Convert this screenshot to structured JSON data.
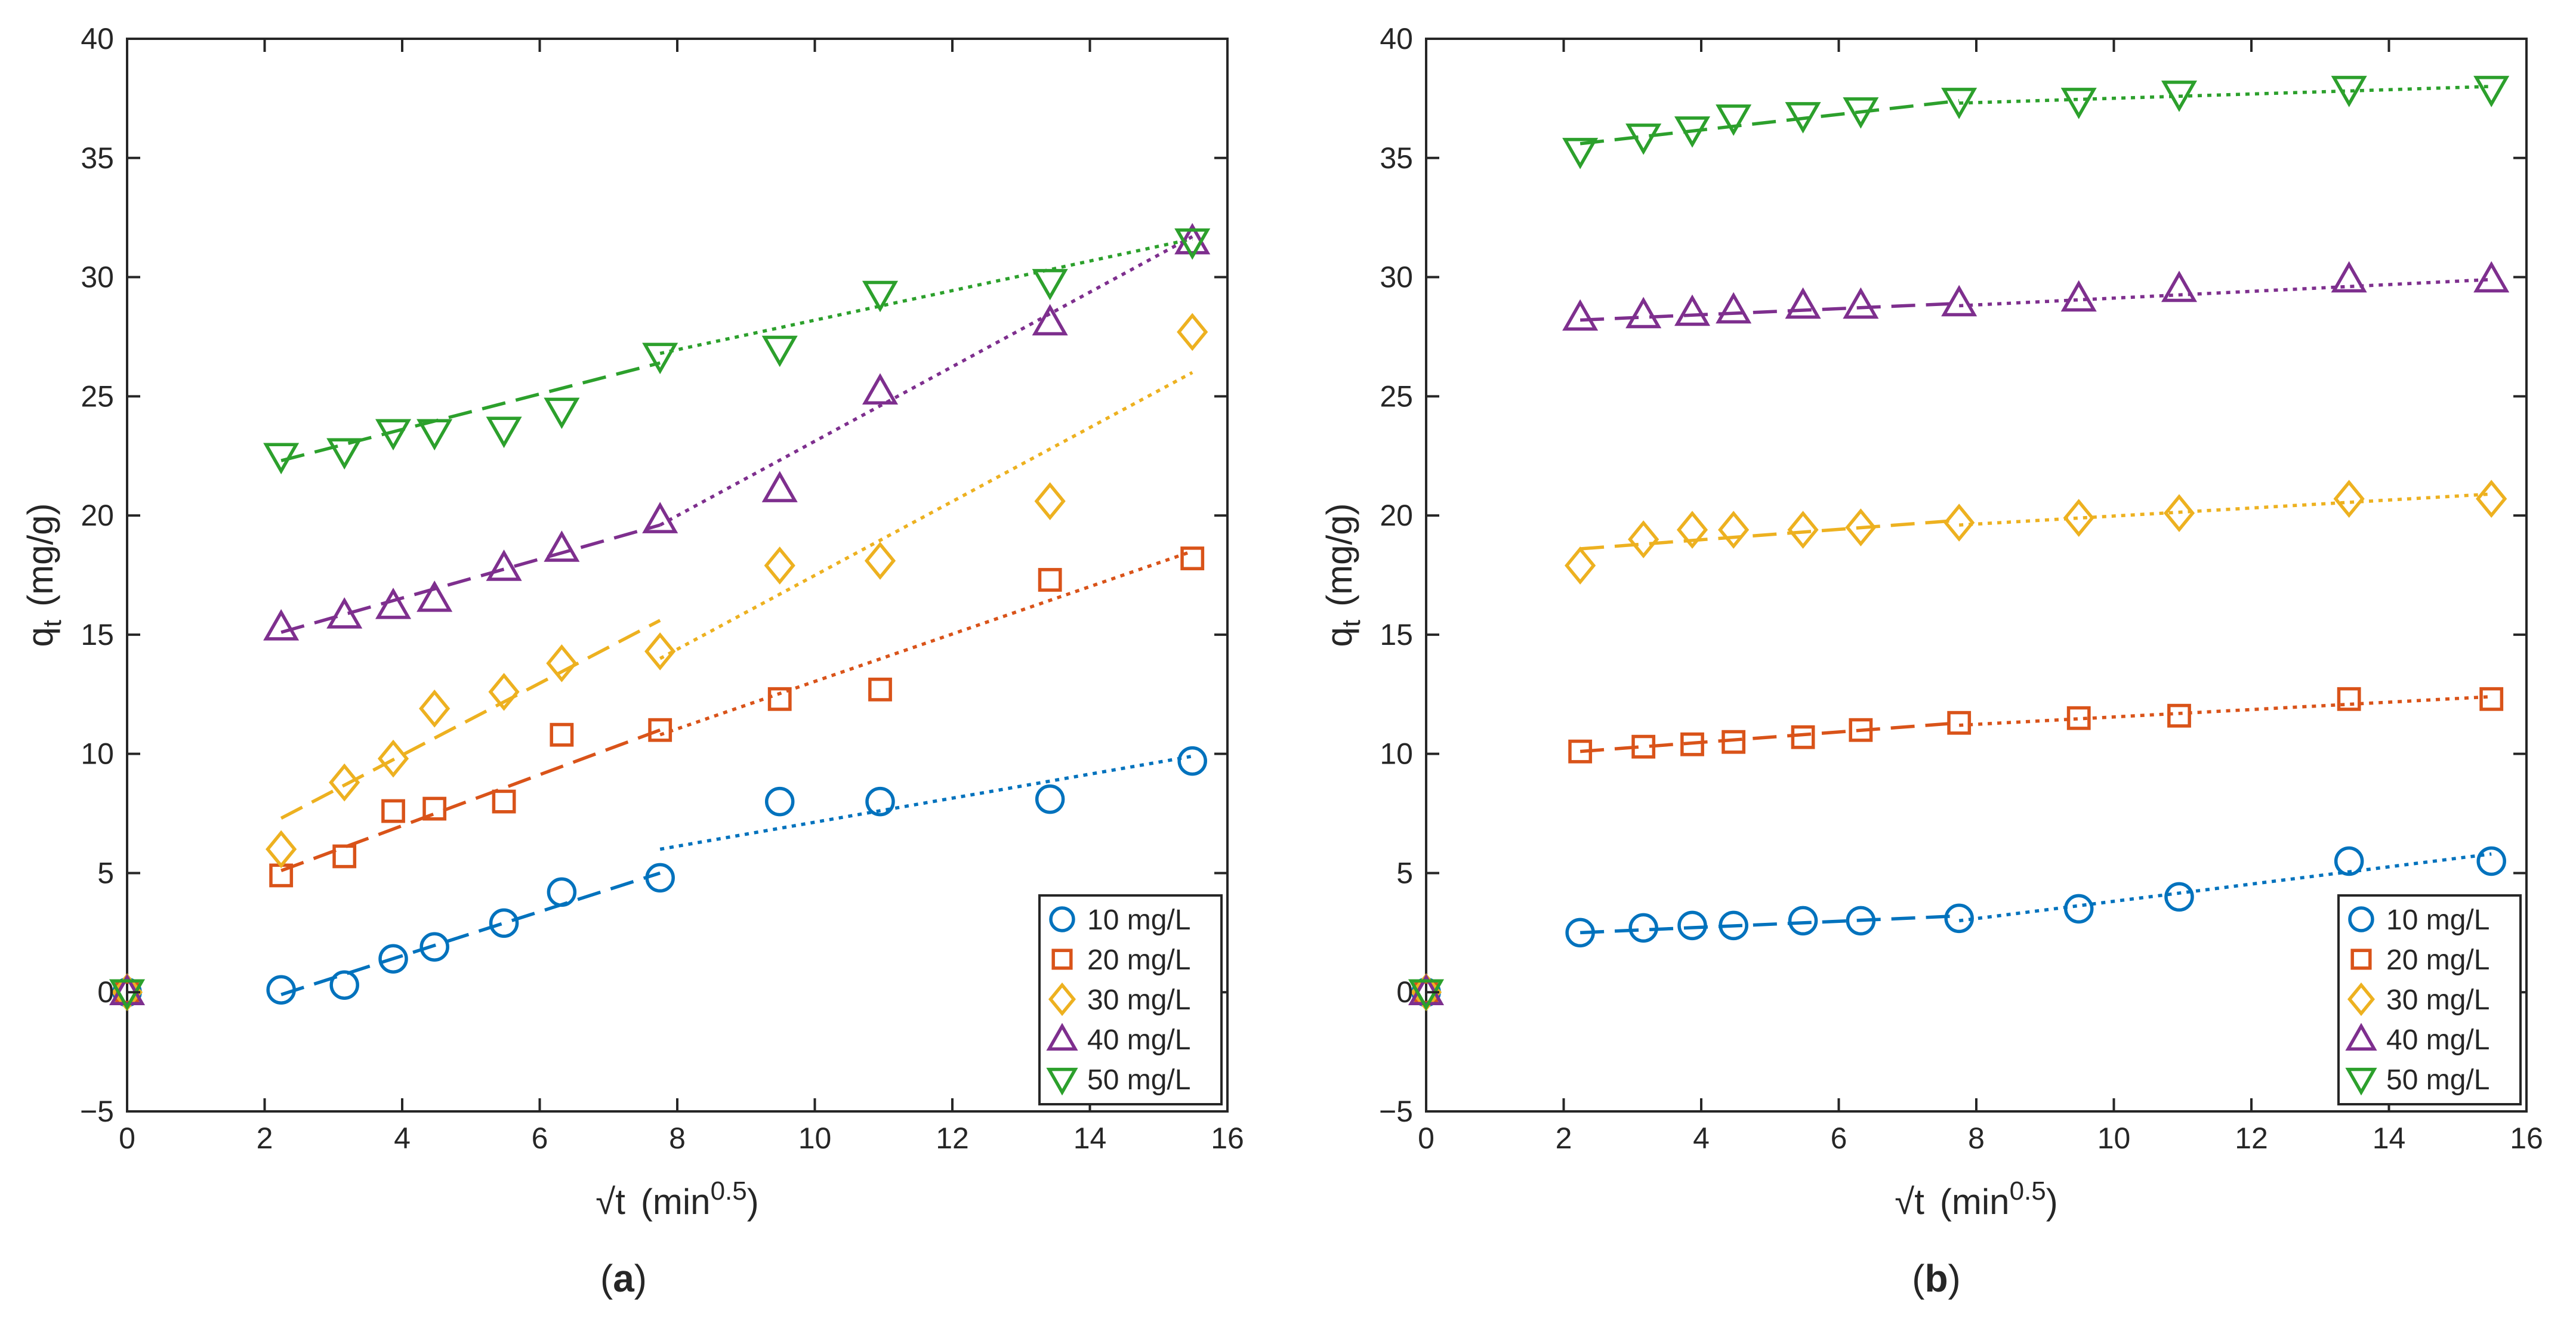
{
  "figure": {
    "legend_entries": [
      "10 mg/L",
      "20 mg/L",
      "30 mg/L",
      "40 mg/L",
      "50 mg/L"
    ],
    "x_ticks": [
      "0",
      "2",
      "4",
      "6",
      "8",
      "10",
      "12",
      "14",
      "16"
    ],
    "y_ticks": [
      "−5",
      "0",
      "5",
      "10",
      "15",
      "20",
      "25",
      "30",
      "35",
      "40"
    ],
    "ylabel_main": "q",
    "ylabel_sub": "t",
    "ylabel_unit": "(mg/g)",
    "xlabel_main": "√t",
    "xlabel_unit": "(min",
    "xlabel_sup": "0.5",
    "xlabel_close": ")",
    "panel_a_label": "a",
    "panel_b_label": "b"
  },
  "chart_data": [
    {
      "type": "scatter",
      "panel": "a",
      "title": "",
      "xlabel": "√t (min^0.5)",
      "ylabel": "q_t (mg/g)",
      "xlim": [
        0,
        16
      ],
      "ylim": [
        -5,
        40
      ],
      "x": [
        0,
        2.24,
        3.16,
        3.87,
        4.47,
        5.48,
        6.32,
        7.75,
        9.49,
        10.95,
        13.42,
        15.49
      ],
      "series": [
        {
          "name": "10 mg/L",
          "color": "#0072BD",
          "marker": "circle",
          "values": [
            0,
            0.1,
            0.3,
            1.4,
            1.9,
            2.9,
            4.2,
            4.8,
            8.0,
            8.0,
            8.1,
            9.7
          ]
        },
        {
          "name": "20 mg/L",
          "color": "#D95319",
          "marker": "square",
          "values": [
            0,
            4.9,
            5.7,
            7.6,
            7.7,
            8.0,
            10.8,
            11.0,
            12.3,
            12.7,
            17.3,
            18.2
          ]
        },
        {
          "name": "30 mg/L",
          "color": "#EDB120",
          "marker": "diamond",
          "values": [
            0,
            6.0,
            8.8,
            9.8,
            11.9,
            12.6,
            13.8,
            14.3,
            17.9,
            18.1,
            20.6,
            27.7
          ]
        },
        {
          "name": "40 mg/L",
          "color": "#7E2F8E",
          "marker": "triangle-up",
          "values": [
            0,
            15.3,
            15.8,
            16.2,
            16.5,
            17.8,
            18.6,
            19.8,
            21.1,
            25.2,
            28.1,
            31.5
          ]
        },
        {
          "name": "50 mg/L",
          "color": "#2CA02C",
          "marker": "triangle-down",
          "values": [
            0,
            22.5,
            22.7,
            23.5,
            23.5,
            23.6,
            24.4,
            26.7,
            27.0,
            29.3,
            29.8,
            31.5
          ]
        }
      ],
      "fit_lines": [
        {
          "series": "10 mg/L",
          "stage": 1,
          "style": "dashed",
          "x": [
            2.24,
            7.75
          ],
          "y": [
            -0.1,
            5.0
          ]
        },
        {
          "series": "10 mg/L",
          "stage": 2,
          "style": "dotted",
          "x": [
            7.75,
            15.49
          ],
          "y": [
            6.0,
            9.9
          ]
        },
        {
          "series": "20 mg/L",
          "stage": 1,
          "style": "dashed",
          "x": [
            2.24,
            7.75
          ],
          "y": [
            5.1,
            11.0
          ]
        },
        {
          "series": "20 mg/L",
          "stage": 2,
          "style": "dotted",
          "x": [
            7.75,
            15.49
          ],
          "y": [
            10.8,
            18.5
          ]
        },
        {
          "series": "30 mg/L",
          "stage": 1,
          "style": "dashed",
          "x": [
            2.24,
            7.75
          ],
          "y": [
            7.3,
            15.6
          ]
        },
        {
          "series": "30 mg/L",
          "stage": 2,
          "style": "dotted",
          "x": [
            7.75,
            15.49
          ],
          "y": [
            14.0,
            26.0
          ]
        },
        {
          "series": "40 mg/L",
          "stage": 1,
          "style": "dashed",
          "x": [
            2.24,
            7.75
          ],
          "y": [
            15.1,
            19.6
          ]
        },
        {
          "series": "40 mg/L",
          "stage": 2,
          "style": "dotted",
          "x": [
            7.75,
            15.49
          ],
          "y": [
            19.6,
            31.7
          ]
        },
        {
          "series": "50 mg/L",
          "stage": 1,
          "style": "dashed",
          "x": [
            2.24,
            7.75
          ],
          "y": [
            22.3,
            26.4
          ]
        },
        {
          "series": "50 mg/L",
          "stage": 2,
          "style": "dotted",
          "x": [
            7.75,
            15.49
          ],
          "y": [
            26.8,
            31.6
          ]
        }
      ],
      "legend": "bottom-right",
      "grid": false
    },
    {
      "type": "scatter",
      "panel": "b",
      "title": "",
      "xlabel": "√t (min^0.5)",
      "ylabel": "q_t (mg/g)",
      "xlim": [
        0,
        16
      ],
      "ylim": [
        -5,
        40
      ],
      "x": [
        0,
        2.24,
        3.16,
        3.87,
        4.47,
        5.48,
        6.32,
        7.75,
        9.49,
        10.95,
        13.42,
        15.49
      ],
      "series": [
        {
          "name": "10 mg/L",
          "color": "#0072BD",
          "marker": "circle",
          "values": [
            0,
            2.5,
            2.7,
            2.8,
            2.8,
            3.0,
            3.0,
            3.1,
            3.5,
            4.0,
            5.5,
            5.5
          ]
        },
        {
          "name": "20 mg/L",
          "color": "#D95319",
          "marker": "square",
          "values": [
            0,
            10.1,
            10.3,
            10.4,
            10.5,
            10.7,
            11.0,
            11.3,
            11.5,
            11.6,
            12.3,
            12.3
          ]
        },
        {
          "name": "30 mg/L",
          "color": "#EDB120",
          "marker": "diamond",
          "values": [
            0,
            17.9,
            19.0,
            19.4,
            19.4,
            19.4,
            19.5,
            19.7,
            19.9,
            20.1,
            20.7,
            20.7
          ]
        },
        {
          "name": "40 mg/L",
          "color": "#7E2F8E",
          "marker": "triangle-up",
          "values": [
            0,
            28.3,
            28.4,
            28.5,
            28.6,
            28.8,
            28.8,
            28.9,
            29.1,
            29.5,
            29.9,
            29.9
          ]
        },
        {
          "name": "50 mg/L",
          "color": "#2CA02C",
          "marker": "triangle-down",
          "values": [
            0,
            35.3,
            35.9,
            36.2,
            36.7,
            36.8,
            37.0,
            37.4,
            37.4,
            37.7,
            37.9,
            37.9
          ]
        }
      ],
      "fit_lines": [
        {
          "series": "10 mg/L",
          "stage": 1,
          "style": "dashed",
          "x": [
            2.24,
            7.75
          ],
          "y": [
            2.5,
            3.2
          ]
        },
        {
          "series": "10 mg/L",
          "stage": 2,
          "style": "dotted",
          "x": [
            7.75,
            15.49
          ],
          "y": [
            3.0,
            5.8
          ]
        },
        {
          "series": "20 mg/L",
          "stage": 1,
          "style": "dashed",
          "x": [
            2.24,
            7.75
          ],
          "y": [
            10.1,
            11.3
          ]
        },
        {
          "series": "20 mg/L",
          "stage": 2,
          "style": "dotted",
          "x": [
            7.75,
            15.49
          ],
          "y": [
            11.2,
            12.4
          ]
        },
        {
          "series": "30 mg/L",
          "stage": 1,
          "style": "dashed",
          "x": [
            2.24,
            7.75
          ],
          "y": [
            18.6,
            19.8
          ]
        },
        {
          "series": "30 mg/L",
          "stage": 2,
          "style": "dotted",
          "x": [
            7.75,
            15.49
          ],
          "y": [
            19.6,
            20.9
          ]
        },
        {
          "series": "40 mg/L",
          "stage": 1,
          "style": "dashed",
          "x": [
            2.24,
            7.75
          ],
          "y": [
            28.2,
            28.9
          ]
        },
        {
          "series": "40 mg/L",
          "stage": 2,
          "style": "dotted",
          "x": [
            7.75,
            15.49
          ],
          "y": [
            28.8,
            29.9
          ]
        },
        {
          "series": "50 mg/L",
          "stage": 1,
          "style": "dashed",
          "x": [
            2.24,
            7.75
          ],
          "y": [
            35.6,
            37.4
          ]
        },
        {
          "series": "50 mg/L",
          "stage": 2,
          "style": "dotted",
          "x": [
            7.75,
            15.49
          ],
          "y": [
            37.3,
            38.0
          ]
        }
      ],
      "legend": "bottom-right",
      "grid": false
    }
  ]
}
